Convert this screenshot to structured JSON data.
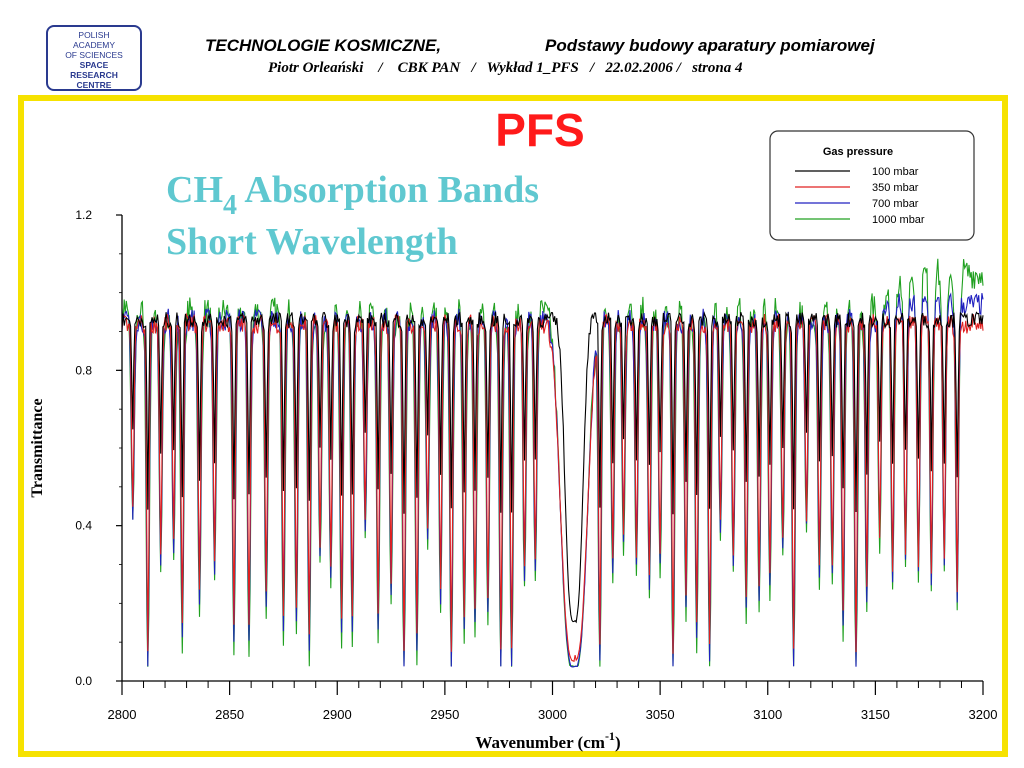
{
  "header": {
    "logo_lines": [
      "POLISH",
      "ACADEMY",
      "OF SCIENCES",
      "SPACE",
      "RESEARCH",
      "CENTRE"
    ],
    "title_left": "TECHNOLOGIE KOSMICZNE,",
    "title_right": "Podstawy budowy aparatury pomiarowej",
    "subtitle": "Piotr Orleański    /    CBK PAN   /   Wykład 1_PFS   /   22.02.2006 /   strona 4"
  },
  "chart_data": {
    "type": "line",
    "title": "PFS",
    "subtitle_main": "CH",
    "subtitle_sub": "4",
    "subtitle_rest": " Absorption Bands",
    "subtitle_line2": "Short Wavelength",
    "xlabel_main": "Wavenumber (cm",
    "xlabel_sup": "-1",
    "xlabel_close": ")",
    "ylabel": "Transmittance",
    "xlim": [
      2800,
      3200
    ],
    "ylim": [
      0.0,
      1.2
    ],
    "xticks": [
      2800,
      2850,
      2900,
      2950,
      3000,
      3050,
      3100,
      3150,
      3200
    ],
    "yticks": [
      "0.0",
      "0.4",
      "0.8",
      "1.2"
    ],
    "legend": {
      "title": "Gas pressure",
      "position": "top-right",
      "entries": [
        {
          "label": "100 mbar",
          "color": "#000000"
        },
        {
          "label": "350 mbar",
          "color": "#e02020"
        },
        {
          "label": "700 mbar",
          "color": "#2020c0"
        },
        {
          "label": "1000 mbar",
          "color": "#20a020"
        }
      ]
    },
    "colors": {
      "title": "#ff1a1a",
      "subtitle": "#5fc8d0",
      "frame": "#f6e200"
    },
    "absorption_lines_cm1": [
      2805,
      2812,
      2818,
      2824,
      2828,
      2836,
      2843,
      2852,
      2859,
      2867,
      2875,
      2881,
      2887,
      2892,
      2897,
      2902,
      2907,
      2913,
      2919,
      2925,
      2931,
      2937,
      2942,
      2948,
      2953,
      2959,
      2964,
      2970,
      2976,
      2981,
      2987,
      2992,
      3022,
      3028,
      3033,
      3039,
      3045,
      3050,
      3056,
      3062,
      3067,
      3073,
      3078,
      3084,
      3090,
      3096,
      3101,
      3107,
      3112,
      3118,
      3124,
      3130,
      3135,
      3141,
      3146,
      3152,
      3158,
      3164,
      3170,
      3176,
      3182,
      3188
    ],
    "band_center_cm1": 3010,
    "min_transmittance": {
      "100 mbar": 0.15,
      "350 mbar": 0.05,
      "700 mbar": 0.03,
      "1000 mbar": 0.02
    }
  }
}
